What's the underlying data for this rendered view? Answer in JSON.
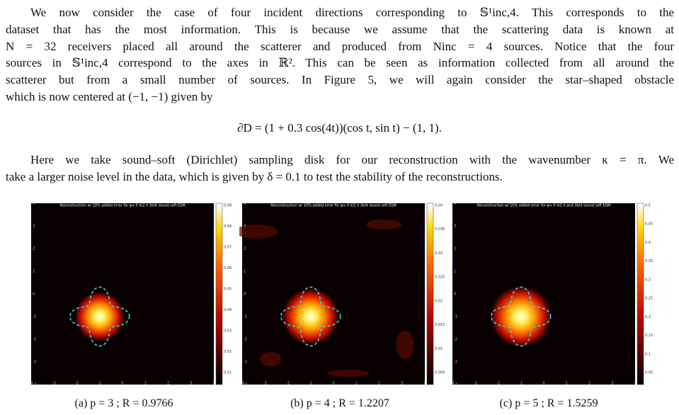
{
  "paragraph_1": {
    "lines": [
      "We now consider the case of four incident directions corresponding to 𝕊¹inc,4. This corresponds to the",
      "dataset that has the most information. This is because we assume that the scattering data is known at",
      "N = 32 receivers placed all around the scatterer and produced from Ninc = 4 sources. Notice that the four",
      "sources in 𝕊¹inc,4 correspond to the axes in ℝ². This can be seen as information collected from all around the",
      "scatterer but from a small number of sources. In Figure 5, we will again consider the star–shaped obstacle",
      "which is now centered at (−1, −1) given by"
    ]
  },
  "equation": "∂D = (1 + 0.3 cos(4t))(cos t, sin t) − (1, 1).",
  "paragraph_2": {
    "lines": [
      "Here we take sound–soft (Dirichlet) sampling disk for our reconstruction with the wavenumber κ = π. We",
      "take a larger noise level in the data, which is given by δ = 0.1 to test the stability of the reconstructions."
    ]
  },
  "figures": [
    {
      "title": "Reconstruction w/ 10% added error for φ= 0 π/2 π 3π/4 sound soft ESM",
      "xticks": [
        -4,
        -3,
        -2,
        -1,
        0,
        1,
        2,
        3,
        4
      ],
      "yticks": [
        4,
        3,
        2,
        1,
        0,
        -1,
        -2,
        -3,
        -4
      ],
      "colorbar_ticks": [
        0.09,
        0.08,
        0.07,
        0.06,
        0.05,
        0.04,
        0.03,
        0.02,
        0.01
      ],
      "caption": "(a) p = 3 ; R = 0.9766"
    },
    {
      "title": "Reconstruction w/ 10% added error for φ= 0 π/2 π 3π/4 sound soft ESM",
      "xticks": [
        -4,
        -3,
        -2,
        -1,
        0,
        1,
        2,
        3,
        4
      ],
      "yticks": [
        4,
        3,
        2,
        1,
        0,
        -1,
        -2,
        -3,
        -4
      ],
      "colorbar_ticks": [
        0.04,
        0.035,
        0.03,
        0.025,
        0.02,
        0.015,
        0.01,
        0.005
      ],
      "caption": "(b) p = 4 ; R = 1.2207"
    },
    {
      "title": "Reconstruction w/ 10% added error for φ= 0 π/2 π and 3π/4 sound soft ESM",
      "xticks": [
        -4,
        -3,
        -2,
        -1,
        0,
        1,
        2,
        3,
        4
      ],
      "yticks": [
        4,
        3,
        2,
        1,
        0,
        -1,
        -2,
        -3,
        -4
      ],
      "colorbar_ticks": [
        0.5,
        0.45,
        0.4,
        0.35,
        0.3,
        0.25,
        0.2,
        0.15,
        0.1,
        0.05
      ],
      "caption": "(c) p = 5 ; R = 1.5259"
    }
  ]
}
